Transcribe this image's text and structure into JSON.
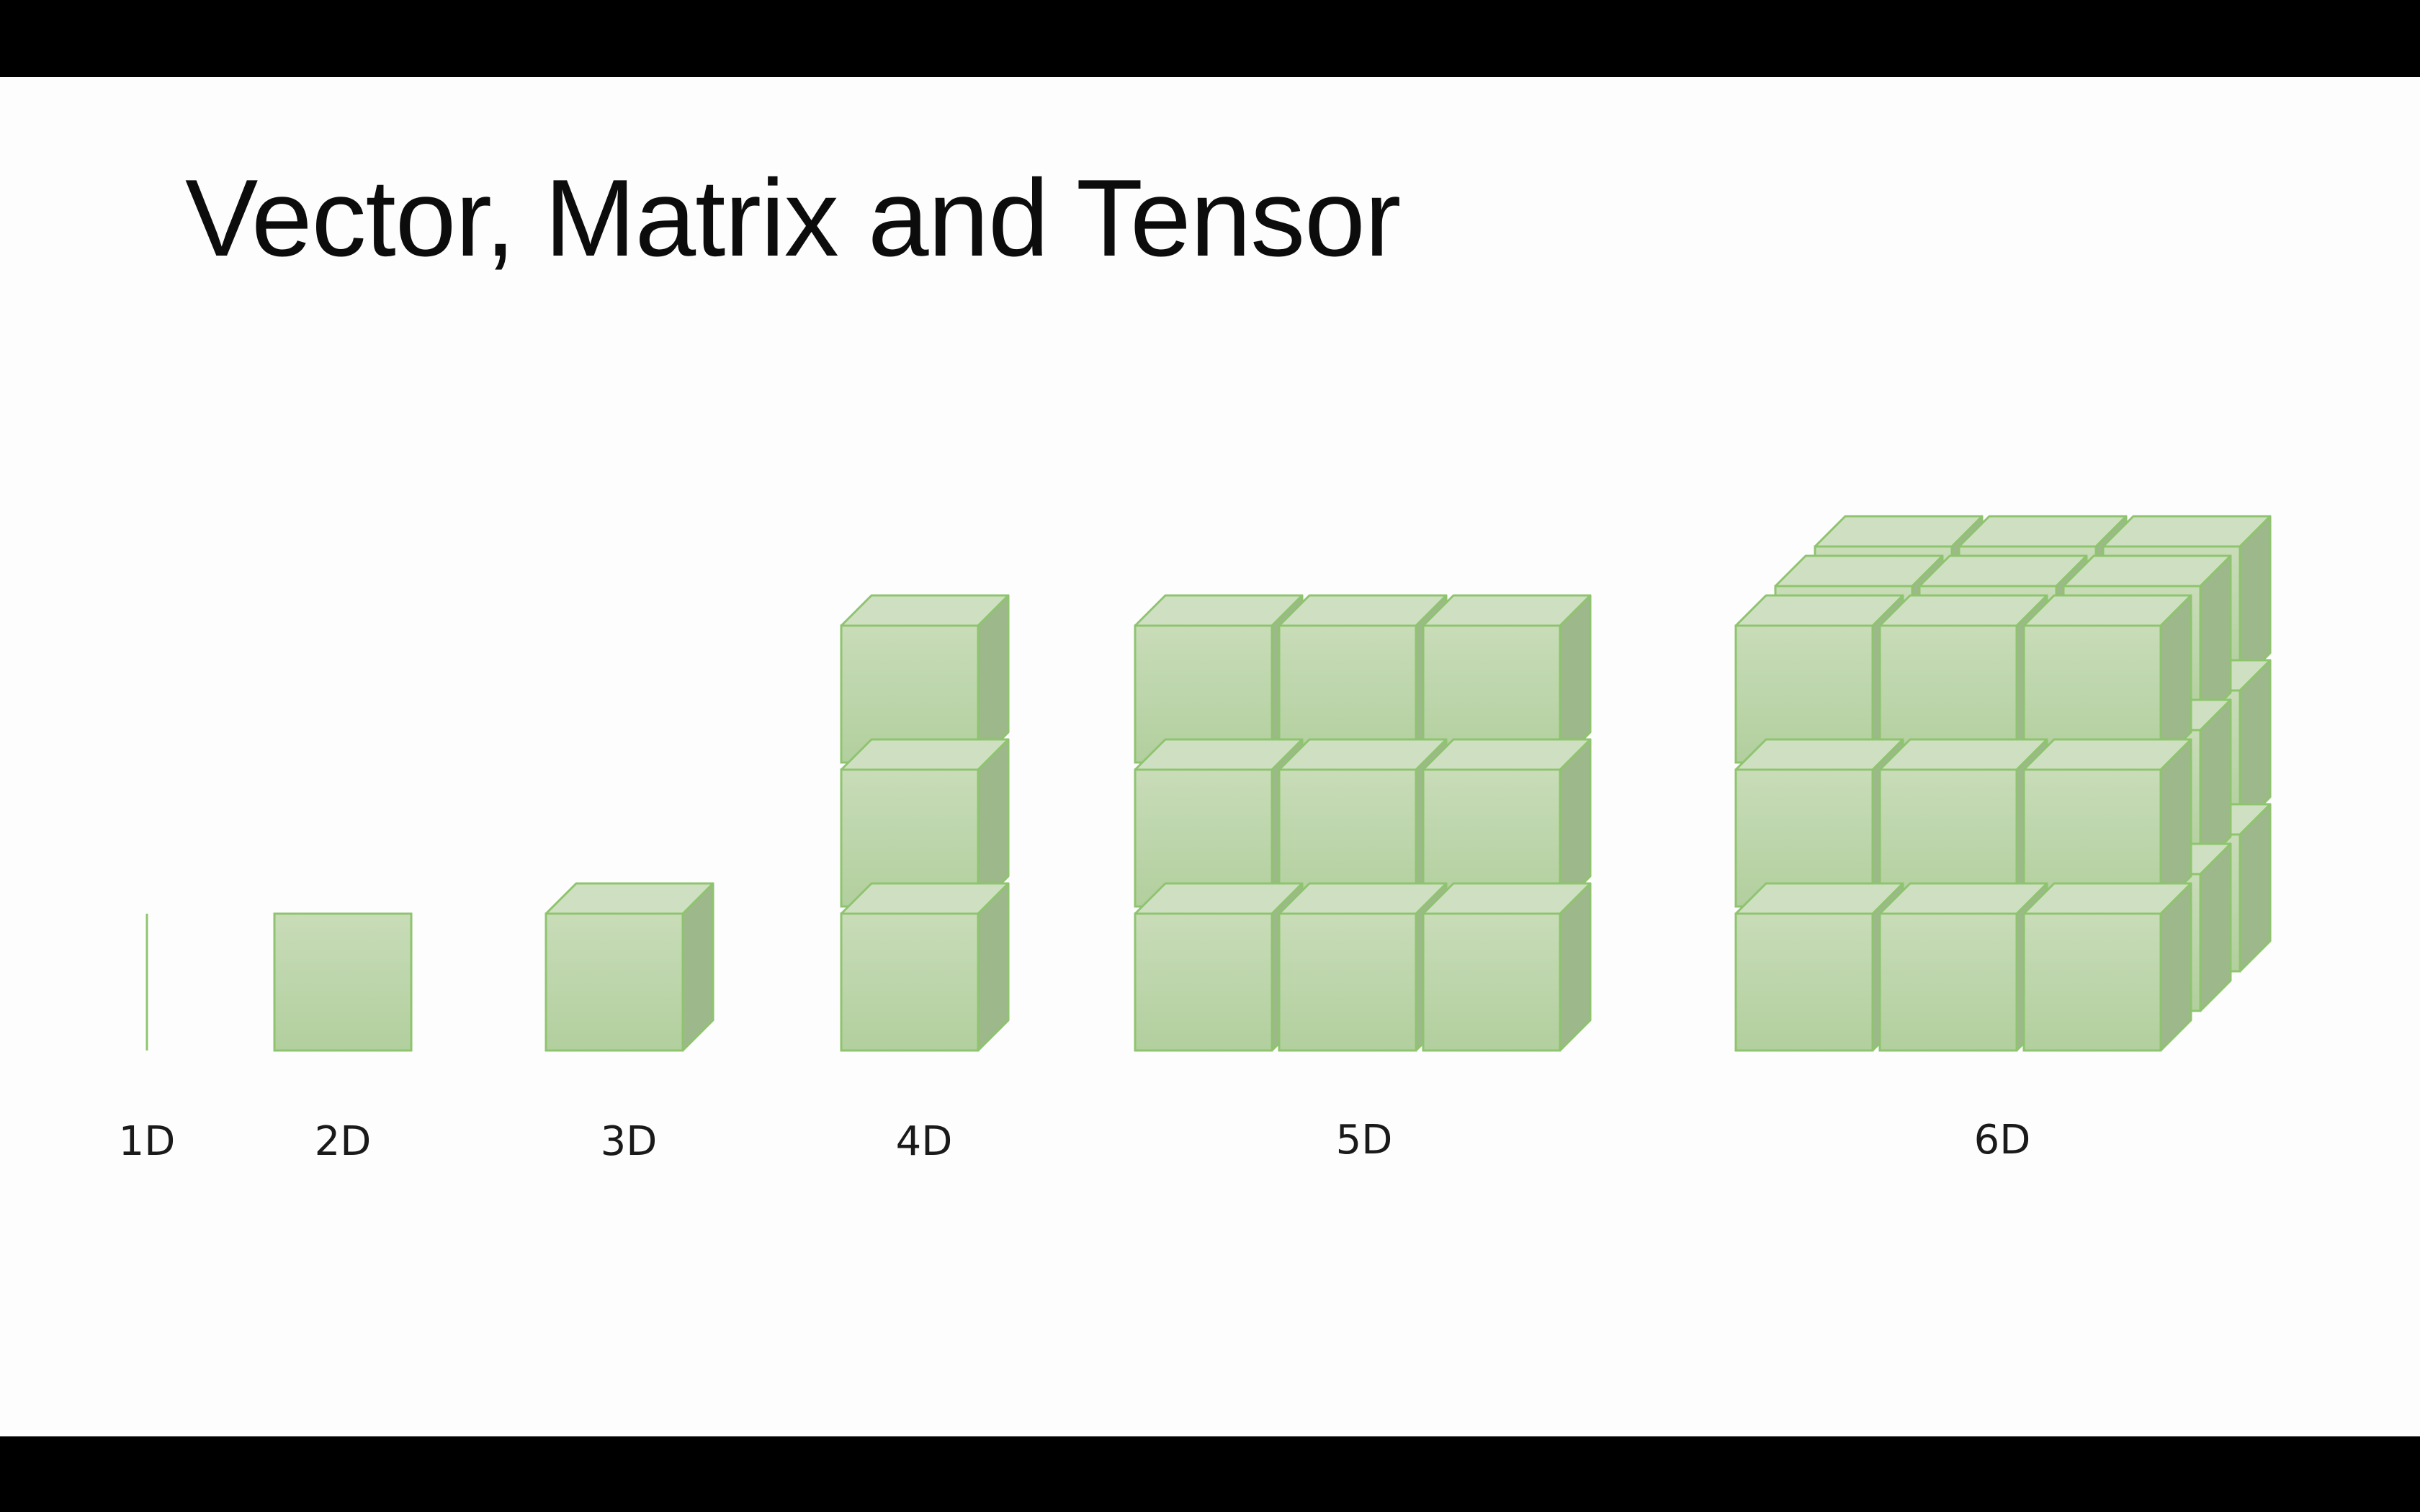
{
  "slide": {
    "title": "Vector, Matrix and Tensor"
  },
  "diagram": {
    "colors": {
      "front_fill_top": "#c8dcb8",
      "front_fill_bottom": "#b2cf9e",
      "top_fill": "#cfe0c2",
      "side_fill": "#9db88a",
      "stroke": "#8fc46f",
      "letterbox": "#000000",
      "background": "#fdfdfd"
    },
    "labels": [
      "1D",
      "2D",
      "3D",
      "4D",
      "5D",
      "6D"
    ]
  }
}
